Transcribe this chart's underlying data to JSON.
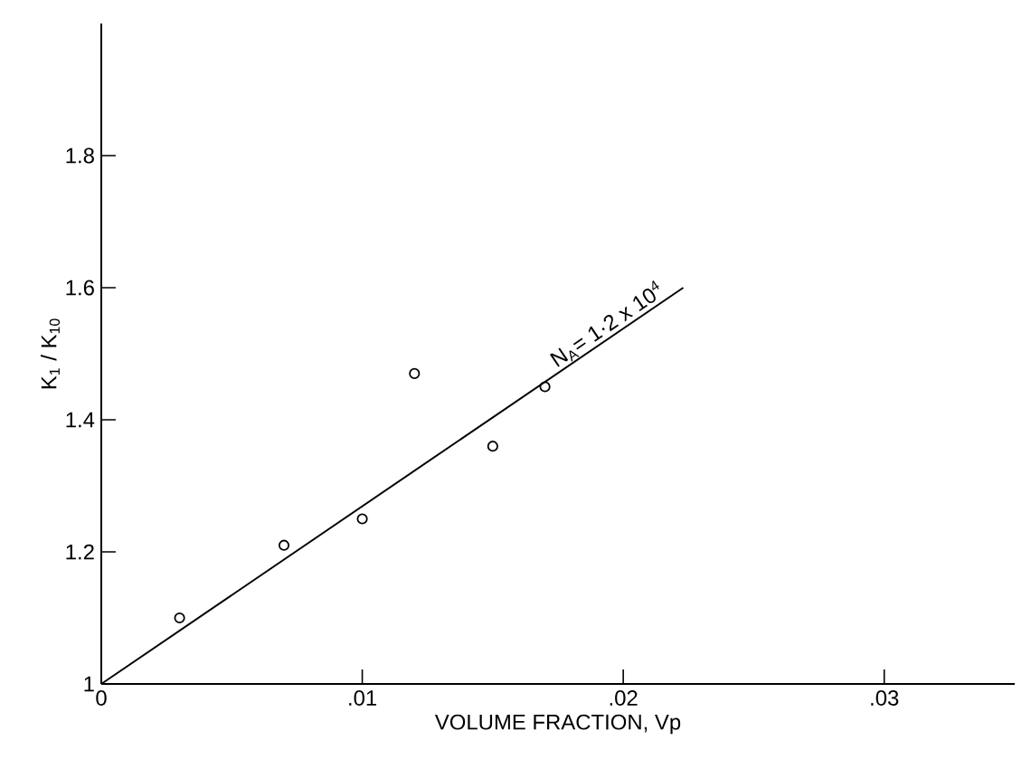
{
  "chart_data": {
    "type": "scatter",
    "xlabel": "VOLUME FRACTION, Vp",
    "ylabel": "K$_{1}$ / K$_{10}$",
    "xlim": [
      0,
      0.035
    ],
    "ylim": [
      1,
      2.0
    ],
    "xticks": [
      0,
      {
        "value": 0.01,
        "label": ".01"
      },
      {
        "value": 0.02,
        "label": ".02"
      },
      {
        "value": 0.03,
        "label": ".03"
      }
    ],
    "yticks": [
      1,
      1.2,
      1.4,
      1.6,
      1.8
    ],
    "series": [
      {
        "color": "#000000",
        "marker": "circle",
        "x": [
          0.003,
          0.007,
          0.01,
          0.012,
          0.015,
          0.017
        ],
        "values": [
          1.1,
          1.21,
          1.25,
          1.47,
          1.36,
          1.45
        ]
      },
      {
        "type": "line",
        "color": "#000000",
        "marker": "none",
        "x": [
          0,
          0.0223
        ],
        "values": [
          1,
          1.6
        ]
      }
    ],
    "annotations": [
      {
        "text": "N$_{A}$= 1·2 x 10$^{4}$",
        "x": 0.0175,
        "y": 1.47
      }
    ]
  }
}
